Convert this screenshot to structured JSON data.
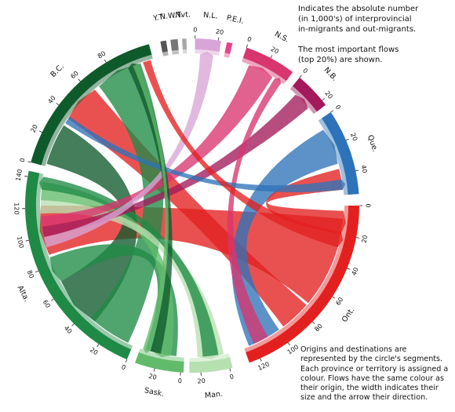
{
  "notes": {
    "top_line1": "Indicates the absolute number",
    "top_line2": "(in 1,000's) of interprovincial",
    "top_line3": "in-migrants and out-migrants.",
    "top_line4": "The most important flows",
    "top_line5": "(top 20%) are shown.",
    "bottom": "Origins and destinations are represented by the circle's segments. Each province or territory is assigned a colour. Flows have the same colour as their origin, the width indicates their size and the arrow their direction."
  },
  "regions": [
    {
      "id": "yt",
      "label": "Y.T.",
      "color": "#555555",
      "start": -11,
      "end": -9,
      "ticks": []
    },
    {
      "id": "nwt",
      "label": "N.W.T.",
      "color": "#777777",
      "start": -7.5,
      "end": -5,
      "ticks": []
    },
    {
      "id": "nvt",
      "label": "Nvt.",
      "color": "#a8a8a8",
      "start": -3.5,
      "end": -2,
      "ticks": []
    },
    {
      "id": "nl",
      "label": "N.L.",
      "color": "#d9a5d6",
      "start": 1,
      "end": 10,
      "ticks": [
        {
          "value": "0",
          "angle": 1
        },
        {
          "value": "20",
          "angle": 9
        }
      ]
    },
    {
      "id": "pei",
      "label": "P.E.I.",
      "color": "#e8428a",
      "start": 12,
      "end": 14,
      "ticks": []
    },
    {
      "id": "ns",
      "label": "N.S.",
      "color": "#d9356f",
      "start": 19,
      "end": 37,
      "ticks": [
        {
          "value": "0",
          "angle": 19
        },
        {
          "value": "20",
          "angle": 28
        }
      ]
    },
    {
      "id": "nb",
      "label": "N.B.",
      "color": "#a3195b",
      "start": 40,
      "end": 53,
      "ticks": [
        {
          "value": "0",
          "angle": 40
        },
        {
          "value": "20",
          "angle": 51
        }
      ]
    },
    {
      "id": "que",
      "label": "Que.",
      "color": "#2e73b9",
      "start": 56,
      "end": 86,
      "ticks": [
        {
          "value": "0",
          "angle": 56
        },
        {
          "value": "20",
          "angle": 67
        },
        {
          "value": "40",
          "angle": 78
        }
      ]
    },
    {
      "id": "ont",
      "label": "Ont.",
      "color": "#e32020",
      "start": 90,
      "end": 160,
      "ticks": [
        {
          "value": "0",
          "angle": 90
        },
        {
          "value": "20",
          "angle": 101
        },
        {
          "value": "40",
          "angle": 112
        },
        {
          "value": "60",
          "angle": 123
        },
        {
          "value": "80",
          "angle": 134
        },
        {
          "value": "100",
          "angle": 145
        },
        {
          "value": "120",
          "angle": 156
        }
      ]
    },
    {
      "id": "man",
      "label": "Man.",
      "color": "#b7e0b0",
      "start": 166,
      "end": 181,
      "ticks": [
        {
          "value": "20",
          "angle": 177
        },
        {
          "value": "0",
          "angle": 167
        }
      ]
    },
    {
      "id": "sask",
      "label": "Sask.",
      "color": "#62bb6a",
      "start": 183,
      "end": 200,
      "ticks": [
        {
          "value": "20",
          "angle": 193
        },
        {
          "value": "0",
          "angle": 184
        }
      ]
    },
    {
      "id": "alta",
      "label": "Alta.",
      "color": "#1f8a45",
      "start": 203,
      "end": 282,
      "ticks": [
        {
          "value": "0",
          "angle": 203
        },
        {
          "value": "20",
          "angle": 214
        },
        {
          "value": "40",
          "angle": 225
        },
        {
          "value": "60",
          "angle": 236
        },
        {
          "value": "80",
          "angle": 247
        },
        {
          "value": "100",
          "angle": 258
        },
        {
          "value": "120",
          "angle": 269
        },
        {
          "value": "140",
          "angle": 280
        }
      ]
    },
    {
      "id": "bc",
      "label": "B.C.",
      "color": "#0f5a2b",
      "start": 285,
      "end": 345,
      "ticks": [
        {
          "value": "0",
          "angle": 285
        },
        {
          "value": "20",
          "angle": 296
        },
        {
          "value": "40",
          "angle": 307
        },
        {
          "value": "60",
          "angle": 318
        },
        {
          "value": "80",
          "angle": 329
        }
      ]
    }
  ],
  "flows": [
    {
      "from": "alta",
      "to": "ont",
      "color": "#e32020",
      "s": [
        95,
        130
      ],
      "t": [
        251,
        270
      ]
    },
    {
      "from": "bc",
      "to": "ont",
      "color": "#e32020",
      "s": [
        131,
        143
      ],
      "t": [
        305,
        320
      ]
    },
    {
      "from": "que",
      "to": "ont",
      "color": "#2e73b9",
      "s": [
        145,
        158
      ],
      "t": [
        60,
        74
      ]
    },
    {
      "from": "ont",
      "to": "que",
      "color": "#e32020",
      "s": [
        76,
        84
      ],
      "t": [
        92,
        101
      ]
    },
    {
      "from": "bc",
      "to": "alta",
      "color": "#0f5a2b",
      "s": [
        286,
        302
      ],
      "t": [
        220,
        240
      ]
    },
    {
      "from": "alta",
      "to": "bc",
      "color": "#1f8a45",
      "s": [
        205,
        222
      ],
      "t": [
        322,
        340
      ]
    },
    {
      "from": "alta",
      "to": "sask",
      "color": "#1f8a45",
      "s": [
        186,
        198
      ],
      "t": [
        240,
        250
      ]
    },
    {
      "from": "sask",
      "to": "alta",
      "color": "#62bb6a",
      "s": [
        272,
        279
      ],
      "t": [
        188,
        195
      ]
    },
    {
      "from": "man",
      "to": "alta",
      "color": "#b7e0b0",
      "s": [
        267,
        272
      ],
      "t": [
        168,
        178
      ]
    },
    {
      "from": "alta",
      "to": "man",
      "color": "#1f8a45",
      "s": [
        170,
        176
      ],
      "t": [
        276,
        281
      ]
    },
    {
      "from": "ns",
      "to": "alta",
      "color": "#d9356f",
      "s": [
        262,
        266
      ],
      "t": [
        22,
        32
      ]
    },
    {
      "from": "nb",
      "to": "alta",
      "color": "#a3195b",
      "s": [
        258,
        262
      ],
      "t": [
        43,
        50
      ]
    },
    {
      "from": "nl",
      "to": "alta",
      "color": "#d9a5d6",
      "s": [
        254,
        258
      ],
      "t": [
        3,
        8
      ]
    },
    {
      "from": "ns",
      "to": "ont",
      "color": "#d9356f",
      "s": [
        150,
        156
      ],
      "t": [
        33,
        36
      ]
    },
    {
      "from": "que",
      "to": "bc",
      "color": "#2e73b9",
      "s": [
        303,
        306
      ],
      "t": [
        80,
        84
      ]
    },
    {
      "from": "ont",
      "to": "bc",
      "color": "#e32020",
      "s": [
        341,
        344
      ],
      "t": [
        100,
        106
      ]
    },
    {
      "from": "bc",
      "to": "sask",
      "color": "#0f5a2b",
      "s": [
        192,
        196
      ],
      "t": [
        335,
        339
      ]
    },
    {
      "from": "sask",
      "to": "bc",
      "color": "#62bb6a",
      "s": [
        337,
        339
      ],
      "t": [
        196,
        199
      ]
    }
  ]
}
